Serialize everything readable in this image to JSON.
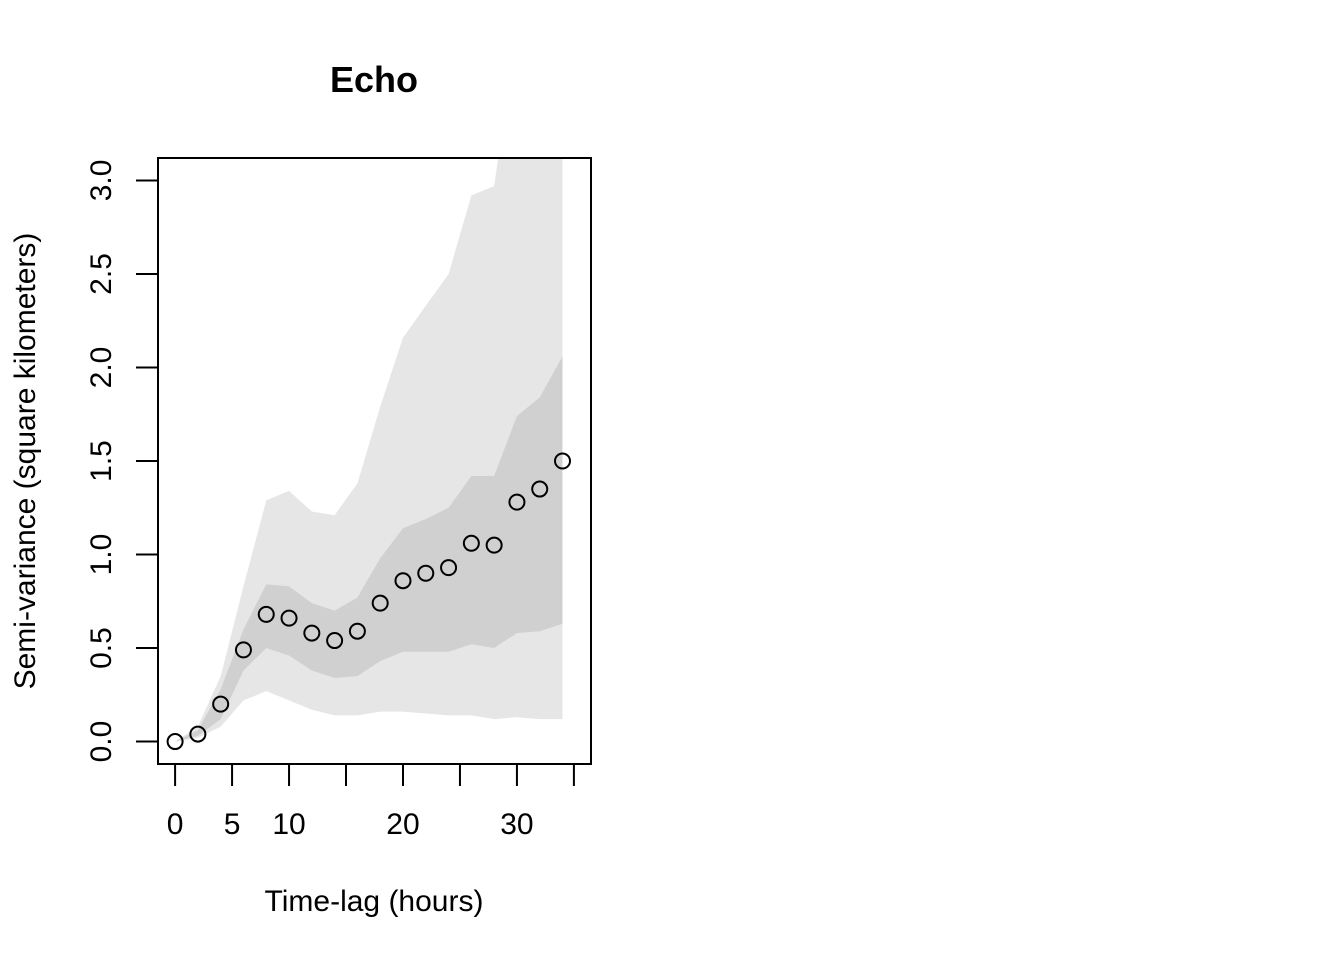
{
  "chart_data": {
    "type": "scatter",
    "title": "Echo",
    "xlabel": "Time-lag (hours)",
    "ylabel": "Semi-variance (square kilometers)",
    "xlim": [
      -1.5,
      36.5
    ],
    "ylim": [
      -0.12,
      3.12
    ],
    "x_ticks": [
      0,
      5,
      10,
      15,
      20,
      25,
      30,
      35
    ],
    "x_tick_labels": [
      "0",
      "5",
      "10",
      "",
      "20",
      "",
      "30",
      ""
    ],
    "y_ticks": [
      0.0,
      0.5,
      1.0,
      1.5,
      2.0,
      2.5,
      3.0
    ],
    "y_tick_labels": [
      "0.0",
      "0.5",
      "1.0",
      "1.5",
      "2.0",
      "2.5",
      "3.0"
    ],
    "grid": false,
    "legend": "none",
    "colors": {
      "outer_band": "#e6e6e6",
      "inner_band": "#d0d0d0",
      "points": "#000000"
    },
    "x": [
      0,
      2,
      4,
      6,
      8,
      10,
      12,
      14,
      16,
      18,
      20,
      22,
      24,
      26,
      28,
      30,
      32,
      34
    ],
    "y": [
      0.0,
      0.04,
      0.2,
      0.49,
      0.68,
      0.66,
      0.58,
      0.54,
      0.59,
      0.74,
      0.86,
      0.9,
      0.93,
      1.06,
      1.05,
      1.28,
      1.35,
      1.5
    ],
    "inner_band": {
      "upper": [
        0.0,
        0.06,
        0.28,
        0.6,
        0.84,
        0.83,
        0.74,
        0.7,
        0.77,
        0.98,
        1.14,
        1.19,
        1.25,
        1.42,
        1.42,
        1.74,
        1.84,
        2.06
      ],
      "lower": [
        0.0,
        0.03,
        0.12,
        0.38,
        0.5,
        0.46,
        0.38,
        0.34,
        0.35,
        0.43,
        0.48,
        0.48,
        0.48,
        0.52,
        0.5,
        0.58,
        0.59,
        0.63
      ]
    },
    "outer_band": {
      "upper": [
        0.0,
        0.08,
        0.35,
        0.83,
        1.29,
        1.34,
        1.23,
        1.21,
        1.38,
        1.79,
        2.16,
        2.33,
        2.5,
        2.92,
        2.97,
        3.8,
        4.0,
        4.5
      ],
      "lower": [
        0.0,
        0.02,
        0.08,
        0.22,
        0.27,
        0.22,
        0.17,
        0.14,
        0.14,
        0.16,
        0.16,
        0.15,
        0.14,
        0.14,
        0.12,
        0.13,
        0.12,
        0.12
      ]
    }
  }
}
